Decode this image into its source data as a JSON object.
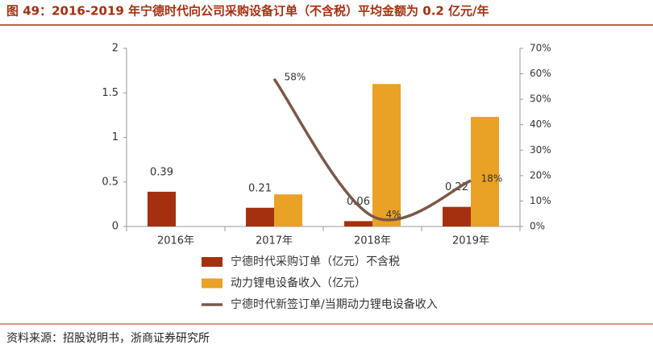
{
  "chart_data": {
    "type": "bar_line",
    "title": "图 49：2016-2019 年宁德时代向公司采购设备订单（不含税）平均金额为 0.2 亿元/年",
    "source": "资料来源：招股说明书，浙商证券研究所",
    "categories": [
      "2016年",
      "2017年",
      "2018年",
      "2019年"
    ],
    "series": [
      {
        "name": "宁德时代采购订单（亿元）不含税",
        "type": "bar",
        "color": "#a5300f",
        "values": [
          0.39,
          0.21,
          0.06,
          0.22
        ]
      },
      {
        "name": "动力锂电设备收入（亿元）",
        "type": "bar",
        "color": "#e9a126",
        "values": [
          null,
          0.36,
          1.6,
          1.23
        ]
      },
      {
        "name": "宁德时代新签订单/当期动力锂电设备收入",
        "type": "line",
        "axis": "y2",
        "color": "#7b5848",
        "values": [
          null,
          58,
          4,
          18
        ],
        "value_labels": [
          null,
          "58%",
          "4%",
          "18%"
        ]
      }
    ],
    "ylim": [
      0,
      2
    ],
    "yticks": [
      0,
      0.5,
      1,
      1.5,
      2
    ],
    "y2lim": [
      0,
      70
    ],
    "y2ticks": [
      {
        "value": 0,
        "label": "0%"
      },
      {
        "value": 10,
        "label": "10%"
      },
      {
        "value": 20,
        "label": "20%"
      },
      {
        "value": 30,
        "label": "30%"
      },
      {
        "value": 40,
        "label": "40%"
      },
      {
        "value": 50,
        "label": "50%"
      },
      {
        "value": 60,
        "label": "60%"
      },
      {
        "value": 70,
        "label": "70%"
      }
    ]
  }
}
